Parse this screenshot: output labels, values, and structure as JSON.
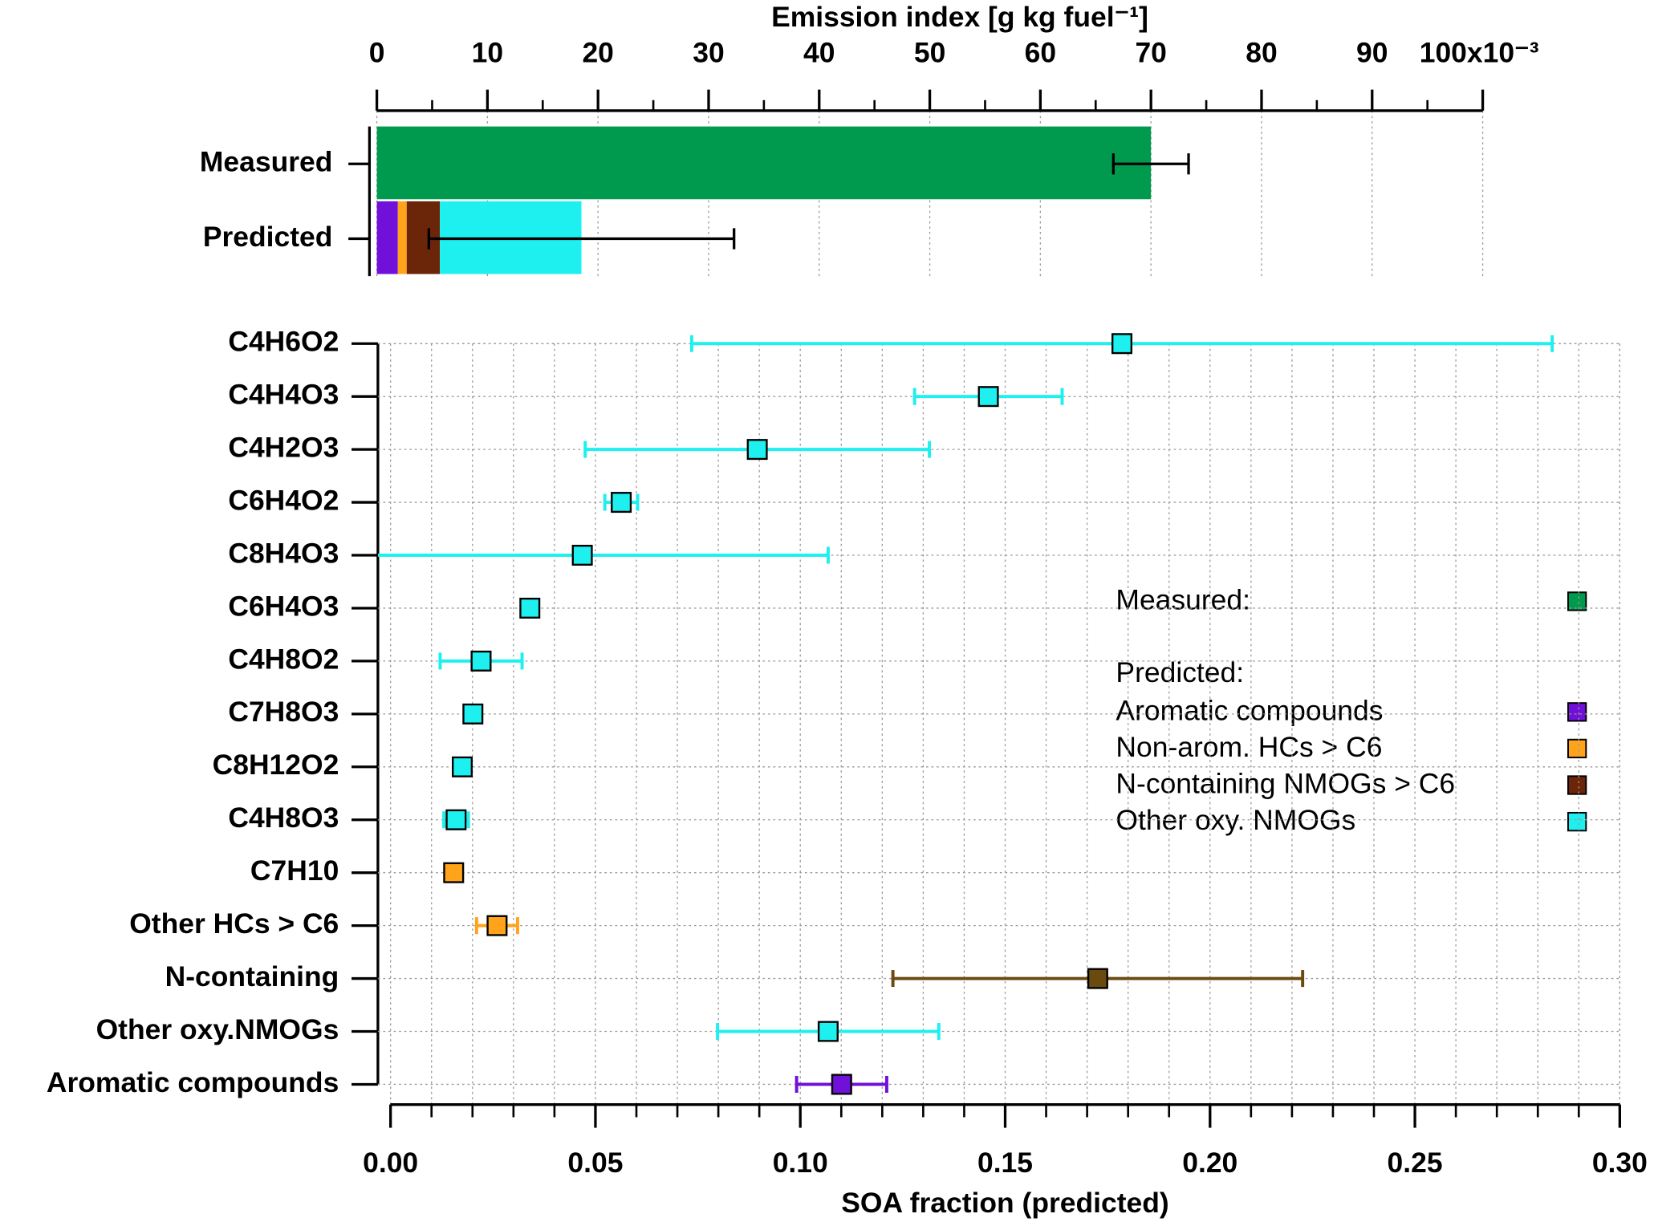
{
  "chart_data": [
    {
      "type": "stacked_barh",
      "xlabel": "Emission index [g kg fuel⁻¹]",
      "categories": [
        "Measured",
        "Predicted"
      ],
      "xlim": [
        0,
        100
      ],
      "xticks": [
        0,
        10,
        20,
        30,
        40,
        50,
        60,
        70,
        80,
        90,
        {
          "value": 100,
          "label": "100x10⁻³"
        }
      ],
      "grid": true,
      "legend_header": "Predicted:",
      "series": [
        {
          "name": "Measured:",
          "color": "#009a4e",
          "values": [
            70,
            null
          ],
          "errors": [
            3.4,
            null
          ]
        },
        {
          "name": "Aromatic compounds",
          "color": "#7010d8",
          "values": [
            null,
            1.9
          ]
        },
        {
          "name": "Non-arom. HCs > C6",
          "color": "#ffa41a",
          "values": [
            null,
            0.8
          ]
        },
        {
          "name": "N-containing NMOGs > C6",
          "color": "#6b2508",
          "values": [
            null,
            3.0
          ]
        },
        {
          "name": "Other oxy. NMOGs",
          "color": "#1ef0f0",
          "values": [
            null,
            12.8
          ],
          "errors": [
            null,
            13.8
          ]
        }
      ]
    },
    {
      "type": "dot",
      "xlabel": "SOA fraction (predicted)",
      "categories": [
        "C4H6O2",
        "C4H4O3",
        "C4H2O3",
        "C6H4O2",
        "C8H4O3",
        "C6H4O3",
        "C4H8O2",
        "C7H8O3",
        "C8H12O2",
        "C4H8O3",
        "C7H10",
        "Other HCs > C6",
        "N-containing",
        "Other oxy.NMOGs",
        "Aromatic compounds"
      ],
      "values": [
        0.1785,
        0.1459,
        0.0895,
        0.0563,
        0.0468,
        0.034,
        0.0221,
        0.0201,
        0.0175,
        0.016,
        0.0154,
        0.026,
        0.1726,
        0.1068,
        0.1101
      ],
      "errors": [
        0.105,
        0.018,
        0.042,
        0.004,
        0.06,
        null,
        0.01,
        null,
        null,
        0.003,
        null,
        0.005,
        0.05,
        0.027,
        0.011
      ],
      "colors": [
        "#1ef0f0",
        "#1ef0f0",
        "#1ef0f0",
        "#1ef0f0",
        "#1ef0f0",
        "#1ef0f0",
        "#1ef0f0",
        "#1ef0f0",
        "#1ef0f0",
        "#1ef0f0",
        "#ffa41a",
        "#ffa41a",
        "#6b4a10",
        "#1ef0f0",
        "#7010d8"
      ],
      "xlim": [
        0,
        0.3
      ],
      "xticks": [
        {
          "value": 0,
          "label": "0.00"
        },
        0.05,
        {
          "value": 0.1,
          "label": "0.10"
        },
        0.15,
        {
          "value": 0.2,
          "label": "0.20"
        },
        0.25,
        {
          "value": 0.3,
          "label": "0.30"
        }
      ],
      "minor_step": 0.01,
      "grid": true
    }
  ]
}
